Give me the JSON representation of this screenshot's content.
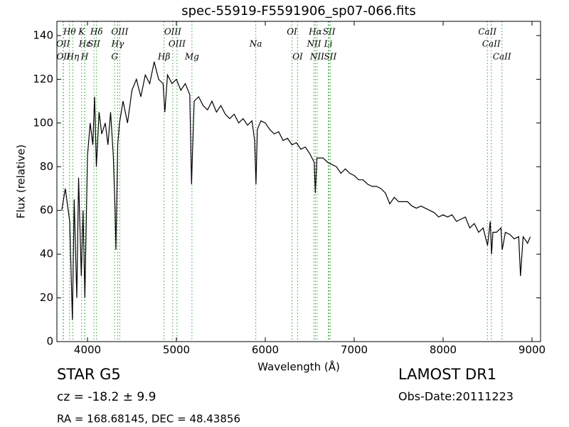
{
  "chart_data": {
    "type": "line",
    "title": "spec-55919-F5591906_sp07-066.fits",
    "x_label": "Wavelength (Å)",
    "y_label": "Flux (relative)",
    "xlim": [
      3656,
      9096
    ],
    "ylim": [
      0,
      146.5
    ],
    "xticks": [
      4000,
      5000,
      6000,
      7000,
      8000,
      9000
    ],
    "yticks": [
      0,
      20,
      40,
      60,
      80,
      100,
      120,
      140
    ],
    "color": "#000000",
    "line_color": "#2ca02c",
    "x": [
      3710,
      3750,
      3800,
      3830,
      3850,
      3880,
      3900,
      3930,
      3950,
      3970,
      4000,
      4030,
      4060,
      4080,
      4100,
      4130,
      4160,
      4200,
      4230,
      4260,
      4290,
      4310,
      4320,
      4340,
      4360,
      4400,
      4450,
      4500,
      4550,
      4600,
      4650,
      4700,
      4750,
      4800,
      4850,
      4870,
      4900,
      4950,
      5000,
      5050,
      5100,
      5150,
      5170,
      5180,
      5200,
      5250,
      5300,
      5350,
      5400,
      5450,
      5500,
      5550,
      5600,
      5650,
      5700,
      5750,
      5800,
      5850,
      5880,
      5895,
      5910,
      5950,
      6000,
      6050,
      6100,
      6150,
      6200,
      6250,
      6300,
      6350,
      6400,
      6450,
      6500,
      6550,
      6563,
      6580,
      6600,
      6650,
      6700,
      6750,
      6800,
      6850,
      6900,
      6950,
      7000,
      7050,
      7100,
      7150,
      7200,
      7250,
      7300,
      7350,
      7400,
      7450,
      7500,
      7550,
      7600,
      7650,
      7700,
      7750,
      7800,
      7850,
      7900,
      7950,
      8000,
      8050,
      8100,
      8150,
      8200,
      8250,
      8300,
      8350,
      8400,
      8450,
      8500,
      8530,
      8545,
      8560,
      8600,
      8650,
      8665,
      8700,
      8750,
      8800,
      8850,
      8870,
      8900,
      8950,
      8980
    ],
    "values": [
      60,
      70,
      55,
      10,
      65,
      20,
      75,
      30,
      60,
      20,
      85,
      100,
      90,
      112,
      80,
      105,
      95,
      100,
      90,
      105,
      85,
      60,
      42,
      90,
      100,
      110,
      100,
      115,
      120,
      112,
      122,
      118,
      128,
      120,
      118,
      105,
      122,
      118,
      120,
      115,
      118,
      113,
      72,
      85,
      110,
      112,
      108,
      106,
      110,
      105,
      108,
      104,
      102,
      104,
      100,
      102,
      99,
      101,
      92,
      72,
      97,
      101,
      100,
      97,
      95,
      96,
      92,
      93,
      90,
      91,
      88,
      89,
      86,
      82,
      68,
      84,
      84,
      84,
      82,
      81,
      80,
      77,
      79,
      77,
      76,
      74,
      74,
      72,
      71,
      71,
      70,
      68,
      63,
      66,
      64,
      64,
      64,
      62,
      61,
      62,
      61,
      60,
      59,
      57,
      58,
      57,
      58,
      55,
      56,
      57,
      52,
      54,
      50,
      52,
      44,
      55,
      40,
      50,
      50,
      52,
      42,
      50,
      49,
      47,
      48,
      30,
      48,
      45,
      48
    ],
    "lines": [
      {
        "label": "Hθ",
        "wavelength": 3798
      },
      {
        "label": "OII",
        "wavelength": 3726
      },
      {
        "label": "OII",
        "wavelength": 3729
      },
      {
        "label": "Hη",
        "wavelength": 3835
      },
      {
        "label": "Hε",
        "wavelength": 3970
      },
      {
        "label": "K",
        "wavelength": 3934
      },
      {
        "label": "H",
        "wavelength": 3969
      },
      {
        "label": "SII",
        "wavelength": 4072
      },
      {
        "label": "Hδ",
        "wavelength": 4102
      },
      {
        "label": "OIII",
        "wavelength": 4363
      },
      {
        "label": "Hγ",
        "wavelength": 4340
      },
      {
        "label": "G",
        "wavelength": 4305
      },
      {
        "label": "OIII",
        "wavelength": 4959
      },
      {
        "label": "OIII",
        "wavelength": 5007
      },
      {
        "label": "Hβ",
        "wavelength": 4861
      },
      {
        "label": "Mg",
        "wavelength": 5175
      },
      {
        "label": "Na",
        "wavelength": 5893
      },
      {
        "label": "OI",
        "wavelength": 6300
      },
      {
        "label": "OI",
        "wavelength": 6364
      },
      {
        "label": "Hα",
        "wavelength": 6563
      },
      {
        "label": "NII",
        "wavelength": 6548
      },
      {
        "label": "NII",
        "wavelength": 6583
      },
      {
        "label": "SII",
        "wavelength": 6717
      },
      {
        "label": "Li",
        "wavelength": 6708
      },
      {
        "label": "SII",
        "wavelength": 6731
      },
      {
        "label": "CaII",
        "wavelength": 8498
      },
      {
        "label": "CaII",
        "wavelength": 8542
      },
      {
        "label": "CaII",
        "wavelength": 8662
      }
    ],
    "info": {
      "class": "STAR   G5",
      "cz": "cz = -18.2 ± 9.9",
      "coords": "RA = 168.68145, DEC = 48.43856",
      "survey": "LAMOST DR1",
      "obs_date": "Obs-Date:20111223"
    }
  }
}
